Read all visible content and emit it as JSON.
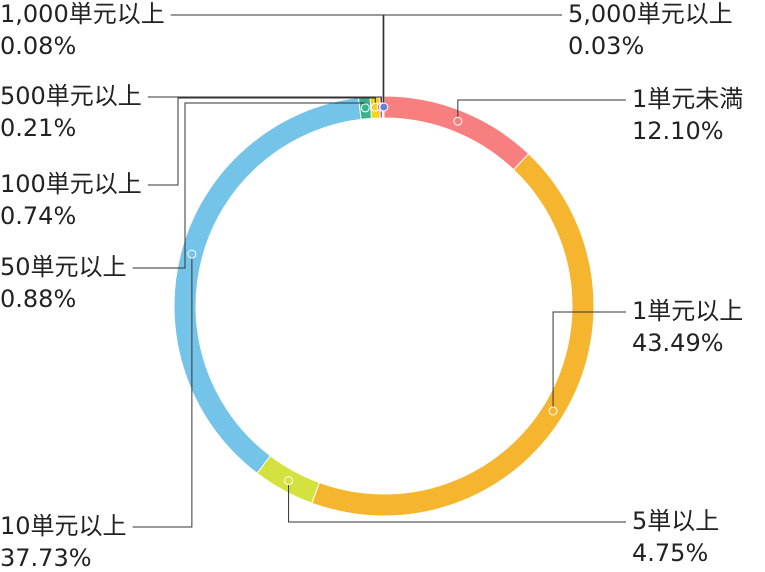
{
  "chart_data": {
    "type": "pie",
    "categories": [
      "1単元未満",
      "1単元以上",
      "5単以上",
      "10単元以上",
      "50単元以上",
      "100単元以上",
      "500単元以上",
      "1,000単元以上",
      "5,000単元以上"
    ],
    "values": [
      12.1,
      43.49,
      4.75,
      37.73,
      0.88,
      0.74,
      0.21,
      0.08,
      0.03
    ],
    "value_labels": [
      "12.10%",
      "43.49%",
      "4.75%",
      "37.73%",
      "0.88%",
      "0.74%",
      "0.21%",
      "0.08%",
      "0.03%"
    ],
    "colors": [
      "#f77f7f",
      "#f5b52e",
      "#d4e23f",
      "#74c3e8",
      "#3ab38a",
      "#f5d21e",
      "#e6417f",
      "#2f5fa7",
      "#6a7fd6"
    ]
  }
}
